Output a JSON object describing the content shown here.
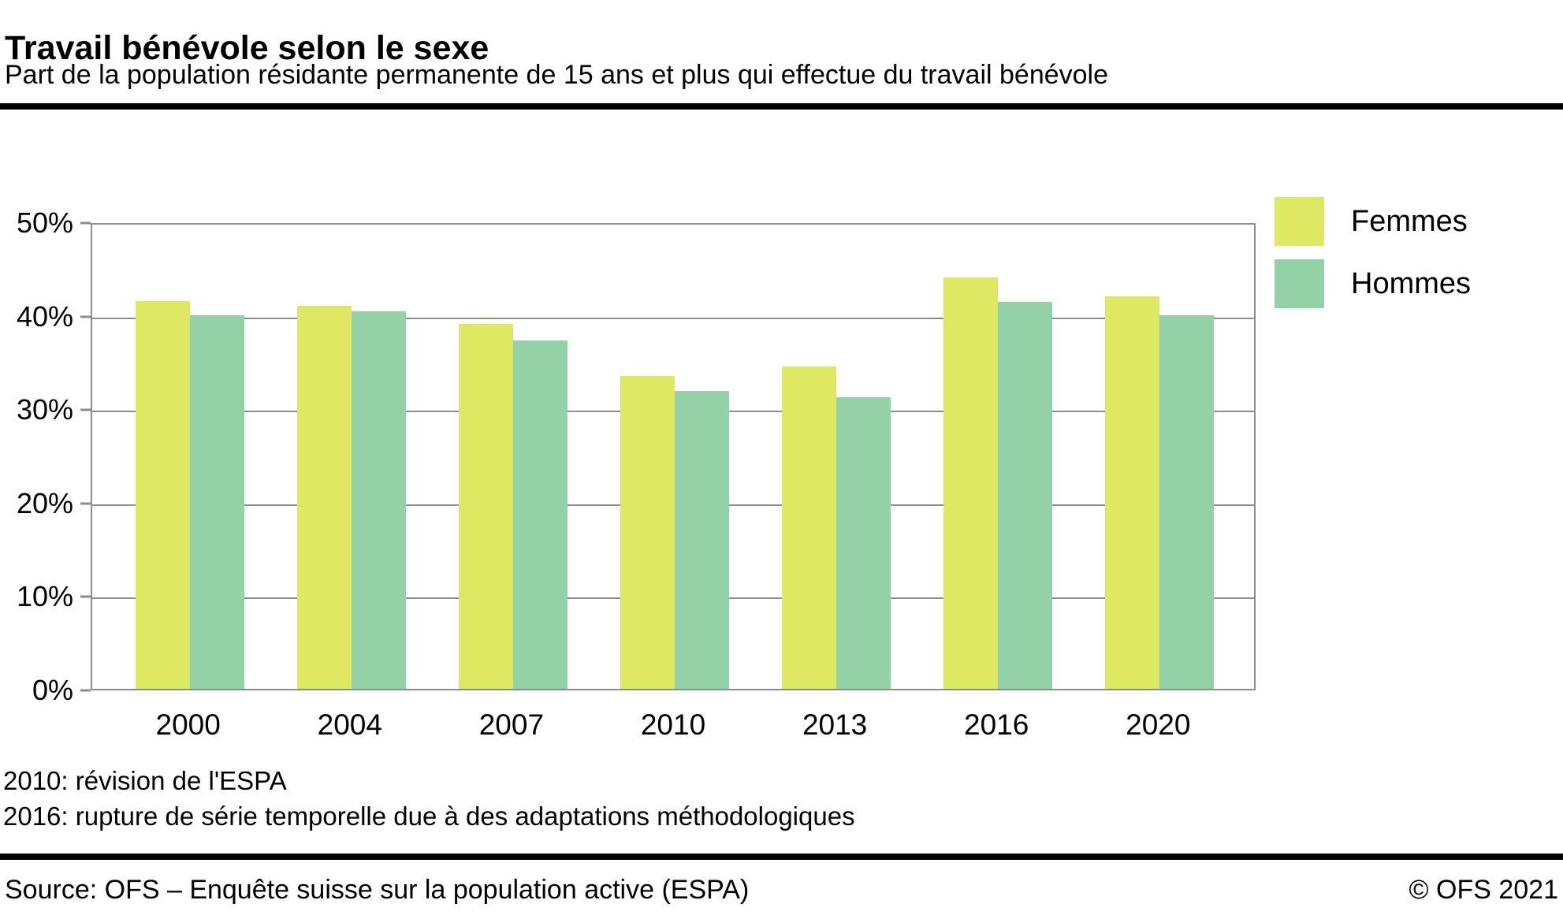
{
  "header": {
    "title": "Travail bénévole selon le sexe",
    "subtitle": "Part de la population résidante permanente de 15 ans et plus qui effectue du travail bénévole"
  },
  "chart_data": {
    "type": "bar",
    "title": "Travail bénévole selon le sexe",
    "categories": [
      "2000",
      "2004",
      "2007",
      "2010",
      "2013",
      "2016",
      "2020"
    ],
    "series": [
      {
        "name": "Femmes",
        "color": "#dde964",
        "values": [
          41.5,
          41.0,
          39.0,
          33.5,
          34.5,
          44.0,
          42.0
        ]
      },
      {
        "name": "Hommes",
        "color": "#93d1a6",
        "values": [
          40.0,
          40.4,
          37.3,
          31.9,
          31.2,
          41.4,
          40.0
        ]
      }
    ],
    "xlabel": "",
    "ylabel": "",
    "ylim": [
      0,
      50
    ],
    "yticks": [
      0,
      10,
      20,
      30,
      40,
      50
    ],
    "ytick_suffix": "%",
    "grid": true,
    "legend_position": "top-right"
  },
  "footnotes": [
    "2010: révision de l'ESPA",
    "2016: rupture de série temporelle due à des adaptations méthodologiques"
  ],
  "footer": {
    "source": "Source: OFS – Enquête suisse sur la population active (ESPA)",
    "copyright": "© OFS 2021"
  },
  "colors": {
    "femmes": "#dde964",
    "hommes": "#93d1a6",
    "grid": "#8c8c8c",
    "rule": "#000000",
    "text": "#000000"
  }
}
